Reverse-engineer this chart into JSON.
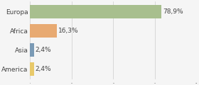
{
  "categories": [
    "Europa",
    "Africa",
    "Asia",
    "America"
  ],
  "values": [
    78.9,
    16.3,
    2.4,
    2.4
  ],
  "labels": [
    "78,9%",
    "16,3%",
    "2,4%",
    "2,4%"
  ],
  "bar_colors": [
    "#a8bf8e",
    "#e8aa72",
    "#7a9ab5",
    "#e8c96a"
  ],
  "background_color": "#f5f5f5",
  "xlim": [
    0,
    100
  ],
  "label_fontsize": 6.5,
  "tick_fontsize": 6.5,
  "grid_ticks": [
    0,
    25,
    50,
    75,
    100
  ]
}
